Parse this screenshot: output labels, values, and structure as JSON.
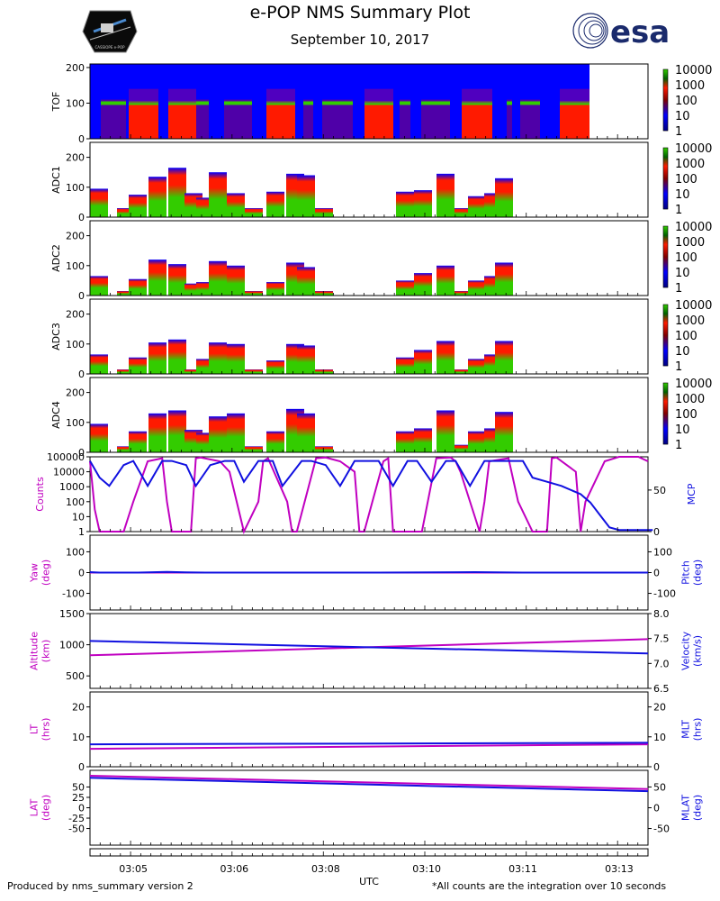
{
  "header": {
    "title": "e-POP NMS Summary Plot",
    "date": "September 10, 2017",
    "logo_left_text": "CASSIOPE e-POP",
    "logo_right_text": "esa"
  },
  "footer": {
    "left": "Produced by nms_summary version 2",
    "right": "*All counts are the integration over 10 seconds"
  },
  "colors": {
    "magenta": "#c000c0",
    "blue": "#1010e0",
    "spec_blue": "#0000ff",
    "spec_red": "#ff1a00",
    "spec_green": "#33cc00",
    "esa_navy": "#1a2a6c"
  },
  "chart_data": {
    "type": "multi-panel time series",
    "xlabel": "UTC",
    "xlim": [
      "03:04:10",
      "03:13:30"
    ],
    "x_ticks": [
      "03:05",
      "03:06",
      "03:08",
      "03:10",
      "03:11",
      "03:13"
    ],
    "colorbar_ticks": [
      "10000",
      "1000",
      "100",
      "10",
      "1"
    ],
    "spectrograms": [
      {
        "ylabel": "TOF",
        "yticks": [
          "200",
          "100",
          "0"
        ],
        "ylim": [
          0,
          210
        ]
      },
      {
        "ylabel": "ADC1",
        "yticks": [
          "200",
          "100",
          "0"
        ],
        "ylim": [
          0,
          250
        ]
      },
      {
        "ylabel": "ADC2",
        "yticks": [
          "200",
          "100",
          "0"
        ],
        "ylim": [
          0,
          250
        ]
      },
      {
        "ylabel": "ADC3",
        "yticks": [
          "200",
          "100",
          "0"
        ],
        "ylim": [
          0,
          250
        ]
      },
      {
        "ylabel": "ADC4",
        "yticks": [
          "200",
          "100",
          "0"
        ],
        "ylim": [
          0,
          250
        ]
      }
    ],
    "adc_bar_heights": [
      [
        95,
        30,
        75,
        135,
        165,
        80,
        65,
        150,
        80,
        30,
        85,
        145,
        140,
        30,
        85,
        90,
        145,
        30,
        70,
        80,
        130
      ],
      [
        65,
        15,
        55,
        120,
        105,
        40,
        45,
        115,
        100,
        15,
        45,
        110,
        95,
        15,
        50,
        75,
        100,
        15,
        50,
        65,
        110
      ],
      [
        65,
        15,
        55,
        105,
        115,
        15,
        50,
        105,
        100,
        15,
        45,
        100,
        95,
        15,
        55,
        80,
        110,
        15,
        50,
        65,
        110
      ],
      [
        95,
        20,
        70,
        130,
        140,
        75,
        65,
        120,
        130,
        20,
        70,
        145,
        130,
        20,
        70,
        80,
        140,
        25,
        70,
        80,
        135
      ]
    ],
    "panels": [
      {
        "left_label": "Counts",
        "right_label": "MCP",
        "left_ticks": [
          "100000",
          "10000",
          "1000",
          "100",
          "10",
          "1"
        ],
        "right_ticks": [
          "50",
          "0"
        ],
        "series": [
          {
            "name": "Counts",
            "axis": "left",
            "scale": "log",
            "ylim": [
              1,
              100000
            ],
            "x": [
              0,
              0.05,
              0.1,
              0.35,
              0.45,
              0.6,
              0.75,
              0.8,
              0.85,
              1.05,
              1.1,
              1.15,
              1.35,
              1.45,
              1.6,
              1.75,
              1.8,
              1.85,
              2.05,
              2.1,
              2.15,
              2.35,
              2.45,
              2.6,
              2.75,
              2.8,
              2.85,
              3.05,
              3.1,
              3.15,
              3.35,
              3.45,
              3.6,
              3.75,
              3.8,
              3.85,
              4.05,
              4.1,
              4.15,
              4.35,
              4.45,
              4.6,
              4.75,
              4.8,
              4.85,
              5.05,
              5.1,
              5.15,
              5.35,
              5.5,
              5.7,
              5.8
            ],
            "y": [
              50000,
              30,
              1,
              1,
              100,
              50000,
              80000,
              100,
              1,
              1,
              80000,
              90000,
              50000,
              10000,
              1,
              100,
              50000,
              80000,
              100,
              1,
              1,
              80000,
              90000,
              50000,
              10000,
              1,
              1,
              50000,
              80000,
              1,
              1,
              1,
              80000,
              90000,
              50000,
              10000,
              1,
              100,
              50000,
              80000,
              100,
              1,
              1,
              80000,
              90000,
              10000,
              1,
              100,
              50000,
              100000,
              100000,
              50000
            ]
          },
          {
            "name": "MCP",
            "axis": "right",
            "scale": "linear",
            "ylim": [
              0,
              90
            ],
            "x": [
              0,
              0.1,
              0.2,
              0.35,
              0.45,
              0.6,
              0.75,
              0.85,
              1.0,
              1.1,
              1.25,
              1.4,
              1.5,
              1.6,
              1.75,
              1.9,
              2.0,
              2.2,
              2.3,
              2.45,
              2.6,
              2.75,
              2.85,
              3.0,
              3.15,
              3.3,
              3.4,
              3.55,
              3.7,
              3.8,
              3.95,
              4.1,
              4.25,
              4.35,
              4.5,
              4.6,
              4.75,
              4.9,
              5.1,
              5.2,
              5.3,
              5.4,
              5.5,
              5.6,
              5.75,
              5.85
            ],
            "y": [
              85,
              65,
              55,
              80,
              85,
              55,
              85,
              85,
              80,
              55,
              80,
              85,
              85,
              60,
              85,
              85,
              55,
              85,
              85,
              80,
              55,
              85,
              85,
              85,
              55,
              85,
              85,
              60,
              85,
              85,
              55,
              85,
              85,
              85,
              85,
              65,
              60,
              55,
              45,
              35,
              20,
              5,
              2,
              2,
              2,
              2
            ]
          }
        ]
      },
      {
        "left_label": "Yaw\n(deg)",
        "right_label": "Pitch\n(deg)",
        "left_ticks": [
          "100",
          "0",
          "-100"
        ],
        "right_ticks": [
          "100",
          "0",
          "-100"
        ],
        "series": [
          {
            "name": "Yaw",
            "axis": "left",
            "ylim": [
              -180,
              180
            ],
            "x": [
              0,
              5.8
            ],
            "y": [
              0,
              0
            ]
          },
          {
            "name": "Pitch",
            "axis": "right",
            "ylim": [
              -180,
              180
            ],
            "x": [
              0,
              0.1,
              0.5,
              0.8,
              1.0,
              1.2,
              3.0,
              4.0,
              4.5,
              5.8
            ],
            "y": [
              2,
              0,
              0,
              3,
              1,
              0,
              0,
              2,
              0,
              0
            ]
          }
        ]
      },
      {
        "left_label": "Altitude\n(km)",
        "right_label": "Velocity\n(km/s)",
        "left_ticks": [
          "1500",
          "1000",
          "500"
        ],
        "right_ticks": [
          "8.0",
          "7.5",
          "7.0",
          "6.5"
        ],
        "series": [
          {
            "name": "Altitude",
            "axis": "left",
            "ylim": [
              300,
              1500
            ],
            "x": [
              0,
              5.8
            ],
            "y": [
              830,
              1090
            ]
          },
          {
            "name": "Velocity",
            "axis": "right",
            "ylim": [
              6.5,
              8.0
            ],
            "x": [
              0,
              5.8
            ],
            "y": [
              7.45,
              7.2
            ]
          }
        ]
      },
      {
        "left_label": "LT\n(hrs)",
        "right_label": "MLT\n(hrs)",
        "left_ticks": [
          "20",
          "10",
          "0"
        ],
        "right_ticks": [
          "20",
          "10",
          "0"
        ],
        "series": [
          {
            "name": "LT",
            "axis": "left",
            "ylim": [
              0,
              25
            ],
            "x": [
              0,
              5.8
            ],
            "y": [
              6,
              7.5
            ]
          },
          {
            "name": "MLT",
            "axis": "right",
            "ylim": [
              0,
              25
            ],
            "x": [
              0,
              5.8
            ],
            "y": [
              7.5,
              8
            ]
          }
        ]
      },
      {
        "left_label": "LAT\n(deg)",
        "right_label": "MLAT\n(deg)",
        "left_ticks": [
          "50",
          "25",
          "0",
          "-25",
          "-50"
        ],
        "right_ticks": [
          "50",
          "0",
          "-50"
        ],
        "series": [
          {
            "name": "LAT",
            "axis": "left",
            "ylim": [
              -90,
              90
            ],
            "x": [
              0,
              5.8
            ],
            "y": [
              77,
              45
            ]
          },
          {
            "name": "MLAT",
            "axis": "right",
            "ylim": [
              -90,
              90
            ],
            "x": [
              0,
              5.8
            ],
            "y": [
              72,
              40
            ]
          }
        ]
      }
    ]
  }
}
